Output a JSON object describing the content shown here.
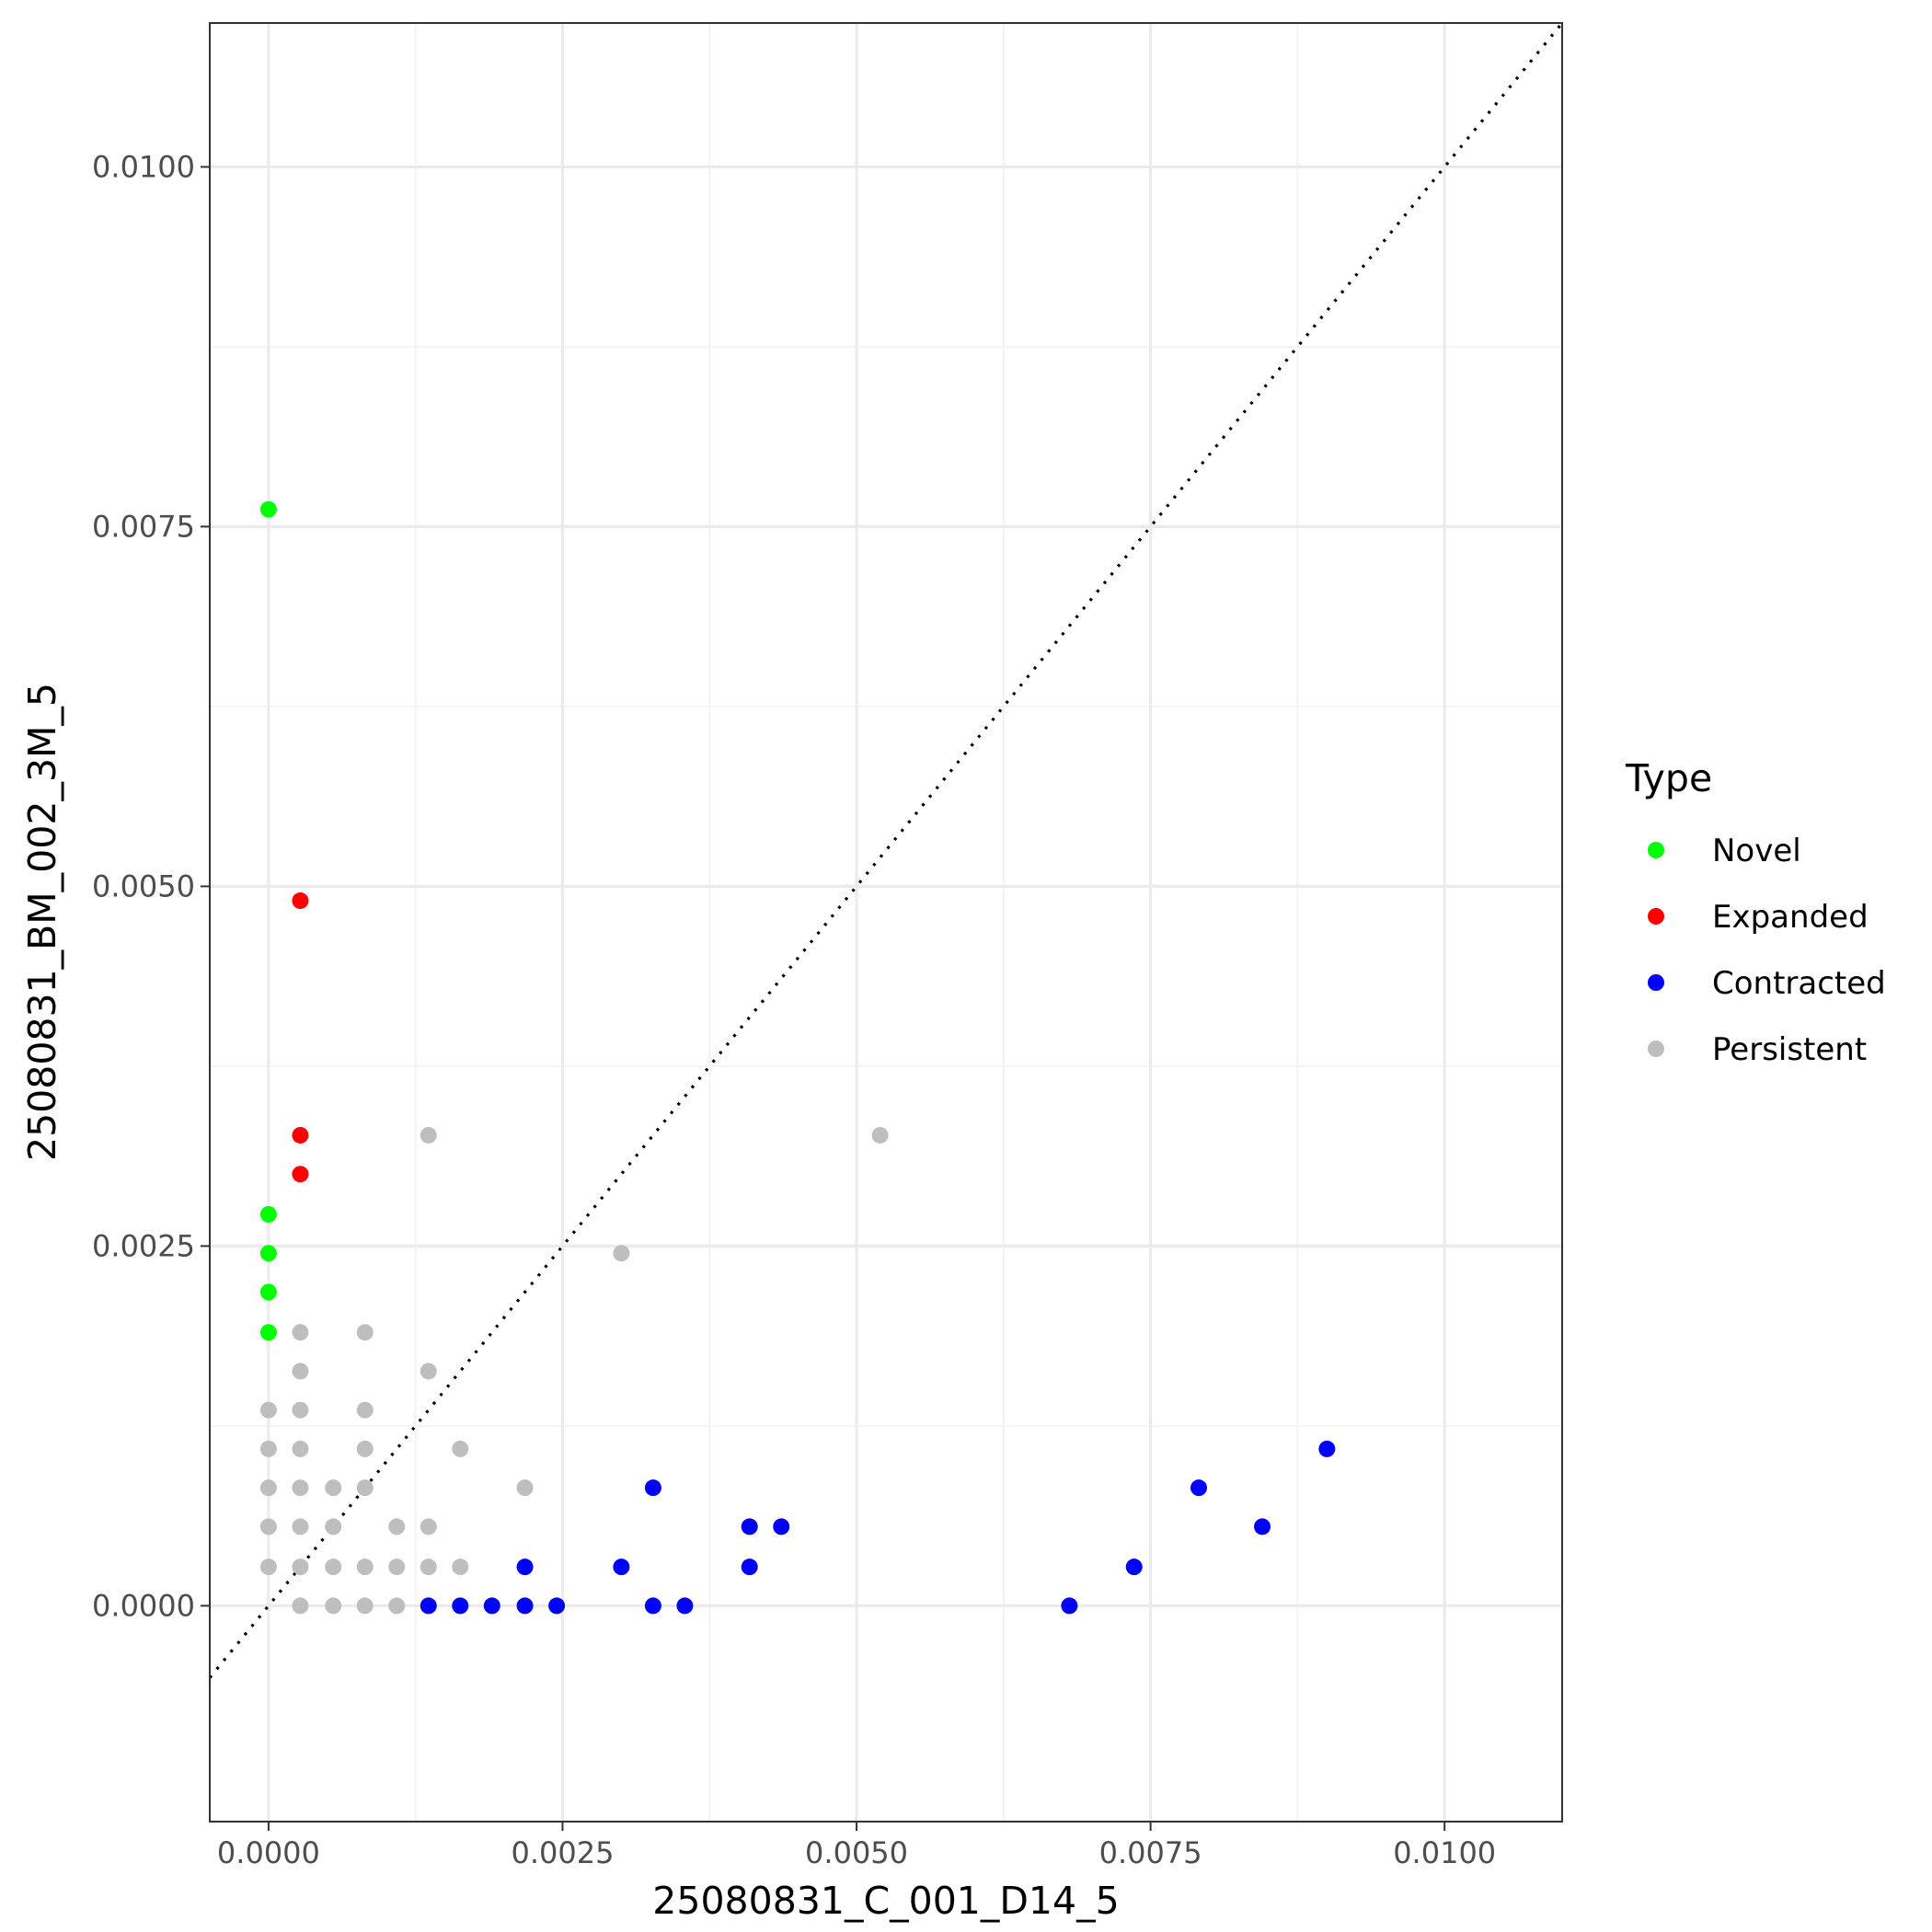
{
  "chart_data": {
    "type": "scatter",
    "xlabel": "25080831_C_001_D14_5",
    "ylabel": "25080831_BM_002_3M_5",
    "xlim": [
      -0.0005,
      0.011
    ],
    "ylim": [
      -0.0015,
      0.011
    ],
    "x_ticks": [
      0.0,
      0.0025,
      0.005,
      0.0075,
      0.01
    ],
    "x_tick_labels": [
      "0.0000",
      "0.0025",
      "0.0050",
      "0.0075",
      "0.0100"
    ],
    "y_ticks": [
      0.0,
      0.0025,
      0.005,
      0.0075,
      0.01
    ],
    "y_tick_labels": [
      "0.0000",
      "0.0025",
      "0.0050",
      "0.0075",
      "0.0100"
    ],
    "reference_line": "y = x (dotted)",
    "grid": true,
    "legend": {
      "title": "Type",
      "placement": "right",
      "entries": [
        {
          "name": "Novel",
          "color": "#00ff00"
        },
        {
          "name": "Expanded",
          "color": "#ff0000"
        },
        {
          "name": "Contracted",
          "color": "#0000ff"
        },
        {
          "name": "Persistent",
          "color": "#bebebe"
        }
      ]
    },
    "series": [
      {
        "name": "Novel",
        "color": "#00ff00",
        "points": [
          [
            0.0,
            0.00762
          ],
          [
            0.0,
            0.00272
          ],
          [
            0.0,
            0.00245
          ],
          [
            0.0,
            0.00218
          ],
          [
            0.0,
            0.0019
          ]
        ]
      },
      {
        "name": "Expanded",
        "color": "#ff0000",
        "points": [
          [
            0.00027,
            0.0049
          ],
          [
            0.00027,
            0.00327
          ],
          [
            0.00027,
            0.003
          ]
        ]
      },
      {
        "name": "Contracted",
        "color": "#0000ff",
        "points": [
          [
            0.00136,
            0.0
          ],
          [
            0.00163,
            0.0
          ],
          [
            0.0019,
            0.0
          ],
          [
            0.00218,
            0.0
          ],
          [
            0.00245,
            0.0
          ],
          [
            0.00327,
            0.0
          ],
          [
            0.00354,
            0.0
          ],
          [
            0.00218,
            0.00027
          ],
          [
            0.003,
            0.00027
          ],
          [
            0.00327,
            0.00082
          ],
          [
            0.00409,
            0.00055
          ],
          [
            0.00436,
            0.00055
          ],
          [
            0.00409,
            0.00027
          ],
          [
            0.00681,
            0.0
          ],
          [
            0.00736,
            0.00027
          ],
          [
            0.00791,
            0.00082
          ],
          [
            0.00845,
            0.00055
          ],
          [
            0.009,
            0.00109
          ]
        ]
      },
      {
        "name": "Persistent",
        "color": "#bebebe",
        "points": [
          [
            0.00136,
            0.00327
          ],
          [
            0.0052,
            0.00327
          ],
          [
            0.003,
            0.00245
          ],
          [
            0.00027,
            0.0019
          ],
          [
            0.00082,
            0.0019
          ],
          [
            0.00027,
            0.00163
          ],
          [
            0.00136,
            0.00163
          ],
          [
            0.0,
            0.00136
          ],
          [
            0.00027,
            0.00136
          ],
          [
            0.00082,
            0.00136
          ],
          [
            0.0,
            0.00109
          ],
          [
            0.00027,
            0.00109
          ],
          [
            0.00082,
            0.00109
          ],
          [
            0.00163,
            0.00109
          ],
          [
            0.0,
            0.00082
          ],
          [
            0.00027,
            0.00082
          ],
          [
            0.00055,
            0.00082
          ],
          [
            0.00082,
            0.00082
          ],
          [
            0.00218,
            0.00082
          ],
          [
            0.0,
            0.00055
          ],
          [
            0.00027,
            0.00055
          ],
          [
            0.00055,
            0.00055
          ],
          [
            0.00109,
            0.00055
          ],
          [
            0.00136,
            0.00055
          ],
          [
            0.0,
            0.00027
          ],
          [
            0.00027,
            0.00027
          ],
          [
            0.00055,
            0.00027
          ],
          [
            0.00082,
            0.00027
          ],
          [
            0.00109,
            0.00027
          ],
          [
            0.00136,
            0.00027
          ],
          [
            0.00163,
            0.00027
          ],
          [
            0.00027,
            0.0
          ],
          [
            0.00055,
            0.0
          ],
          [
            0.00082,
            0.0
          ],
          [
            0.00109,
            0.0
          ]
        ]
      }
    ]
  }
}
